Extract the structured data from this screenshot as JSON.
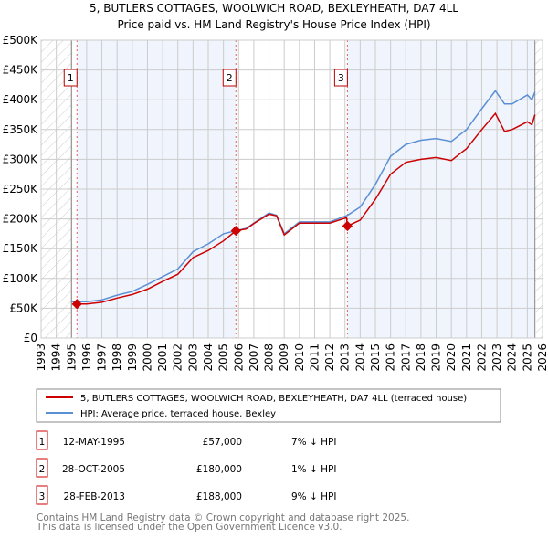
{
  "chart_data": {
    "type": "line",
    "title": "5, BUTLERS COTTAGES, WOOLWICH ROAD, BEXLEYHEATH, DA7 4LL",
    "subtitle": "Price paid vs. HM Land Registry's House Price Index (HPI)",
    "xlim": [
      1993,
      2026
    ],
    "ylim": [
      0,
      500000
    ],
    "x_ticks": [
      "1993",
      "1994",
      "1995",
      "1996",
      "1997",
      "1998",
      "1999",
      "2000",
      "2001",
      "2002",
      "2003",
      "2004",
      "2005",
      "2006",
      "2007",
      "2008",
      "2009",
      "2010",
      "2011",
      "2012",
      "2013",
      "2014",
      "2015",
      "2016",
      "2017",
      "2018",
      "2019",
      "2020",
      "2021",
      "2022",
      "2023",
      "2024",
      "2025",
      "2026"
    ],
    "y_ticks": [
      {
        "v": 0,
        "label": "£0"
      },
      {
        "v": 50000,
        "label": "£50K"
      },
      {
        "v": 100000,
        "label": "£100K"
      },
      {
        "v": 150000,
        "label": "£150K"
      },
      {
        "v": 200000,
        "label": "£200K"
      },
      {
        "v": 250000,
        "label": "£250K"
      },
      {
        "v": 300000,
        "label": "£300K"
      },
      {
        "v": 350000,
        "label": "£350K"
      },
      {
        "v": 400000,
        "label": "£400K"
      },
      {
        "v": 450000,
        "label": "£450K"
      },
      {
        "v": 500000,
        "label": "£500K"
      }
    ],
    "grid": true,
    "data_range": [
      1995,
      2025.5
    ],
    "series": [
      {
        "name": "5, BUTLERS COTTAGES, WOOLWICH ROAD, BEXLEYHEATH, DA7 4LL (terraced house)",
        "color": "#cc0000",
        "x": [
          1995.36,
          1996,
          1997,
          1998,
          1999,
          2000,
          2001,
          2002,
          2003,
          2004,
          2005,
          2005.82,
          2006.5,
          2007,
          2008,
          2008.5,
          2009,
          2010,
          2011,
          2012,
          2013.1,
          2013.16,
          2014,
          2015,
          2016,
          2017,
          2018,
          2019,
          2020,
          2021,
          2022,
          2022.9,
          2023.5,
          2024,
          2025,
          2025.3,
          2025.5
        ],
        "y": [
          57000,
          57000,
          60000,
          67000,
          73000,
          82000,
          95000,
          107000,
          135000,
          147000,
          163000,
          180000,
          183000,
          192000,
          208000,
          205000,
          173000,
          193000,
          193000,
          193000,
          202000,
          188000,
          198000,
          233000,
          275000,
          295000,
          300000,
          303000,
          298000,
          318000,
          350000,
          377000,
          347000,
          350000,
          363000,
          358000,
          375000
        ]
      },
      {
        "name": "HPI: Average price, terraced house, Bexley",
        "color": "#5b8fd4",
        "x": [
          1995,
          1996,
          1997,
          1998,
          1999,
          2000,
          2001,
          2002,
          2003,
          2004,
          2005,
          2005.82,
          2006.5,
          2007,
          2008,
          2008.5,
          2009,
          2010,
          2011,
          2012,
          2013.16,
          2014,
          2015,
          2016,
          2017,
          2018,
          2019,
          2020,
          2021,
          2022,
          2022.9,
          2023.5,
          2024,
          2025,
          2025.3,
          2025.5
        ],
        "y": [
          61000,
          61000,
          64000,
          72000,
          78000,
          90000,
          103000,
          116000,
          145000,
          158000,
          175000,
          180000,
          184000,
          193000,
          210000,
          206000,
          175000,
          195000,
          195000,
          195000,
          206000,
          220000,
          258000,
          305000,
          325000,
          332000,
          335000,
          330000,
          350000,
          385000,
          415000,
          393000,
          393000,
          408000,
          400000,
          413000
        ]
      }
    ],
    "sales": [
      {
        "id": "1",
        "x": 1995.36,
        "price": 57000,
        "date": "12-MAY-1995",
        "price_label": "£57,000",
        "hpi": "7% ↓ HPI"
      },
      {
        "id": "2",
        "x": 2005.82,
        "price": 180000,
        "date": "28-OCT-2005",
        "price_label": "£180,000",
        "hpi": "1% ↓ HPI"
      },
      {
        "id": "3",
        "x": 2013.16,
        "price": 188000,
        "date": "28-FEB-2013",
        "price_label": "£188,000",
        "hpi": "9% ↓ HPI"
      }
    ]
  },
  "header": {
    "title": "5, BUTLERS COTTAGES, WOOLWICH ROAD, BEXLEYHEATH, DA7 4LL",
    "subtitle": "Price paid vs. HM Land Registry's House Price Index (HPI)"
  },
  "legend": {
    "items": [
      {
        "label": "5, BUTLERS COTTAGES, WOOLWICH ROAD, BEXLEYHEATH, DA7 4LL (terraced house)",
        "color": "#cc0000"
      },
      {
        "label": "HPI: Average price, terraced house, Bexley",
        "color": "#5b8fd4"
      }
    ]
  },
  "footer": {
    "line1": "Contains HM Land Registry data © Crown copyright and database right 2025.",
    "line2": "This data is licensed under the Open Government Licence v3.0."
  }
}
